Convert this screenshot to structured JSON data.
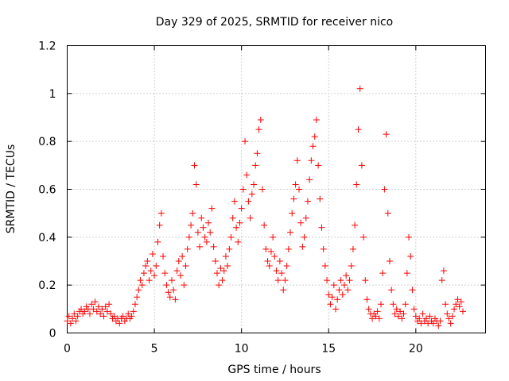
{
  "chart_data": {
    "type": "scatter",
    "title": "Day 329 of 2025, SRMTID for receiver nico",
    "xlabel": "GPS time / hours",
    "ylabel": "SRMTID / TECUs",
    "xlim": [
      0,
      24
    ],
    "ylim": [
      0,
      1.2
    ],
    "x_ticks": [
      0,
      5,
      10,
      15,
      20
    ],
    "x_tick_labels": [
      "0",
      "5",
      "10",
      "15",
      "20"
    ],
    "y_ticks": [
      0,
      0.2,
      0.4,
      0.6,
      0.8,
      1.0,
      1.2
    ],
    "y_tick_labels": [
      "0",
      "0.2",
      "0.4",
      "0.6",
      "0.8",
      "1",
      "1.2"
    ],
    "grid": true,
    "marker": "+",
    "color": "#ff0000",
    "series": [
      {
        "name": "SRMTID",
        "points": [
          [
            0.0,
            0.05
          ],
          [
            0.1,
            0.07
          ],
          [
            0.2,
            0.04
          ],
          [
            0.3,
            0.06
          ],
          [
            0.4,
            0.08
          ],
          [
            0.5,
            0.05
          ],
          [
            0.6,
            0.07
          ],
          [
            0.7,
            0.09
          ],
          [
            0.8,
            0.1
          ],
          [
            0.9,
            0.08
          ],
          [
            1.0,
            0.09
          ],
          [
            1.1,
            0.11
          ],
          [
            1.2,
            0.1
          ],
          [
            1.3,
            0.08
          ],
          [
            1.4,
            0.12
          ],
          [
            1.5,
            0.1
          ],
          [
            1.6,
            0.13
          ],
          [
            1.7,
            0.09
          ],
          [
            1.8,
            0.11
          ],
          [
            1.9,
            0.08
          ],
          [
            2.0,
            0.1
          ],
          [
            2.1,
            0.07
          ],
          [
            2.2,
            0.11
          ],
          [
            2.3,
            0.09
          ],
          [
            2.4,
            0.12
          ],
          [
            2.5,
            0.08
          ],
          [
            2.6,
            0.06
          ],
          [
            2.7,
            0.07
          ],
          [
            2.8,
            0.05
          ],
          [
            2.9,
            0.06
          ],
          [
            3.0,
            0.04
          ],
          [
            3.1,
            0.06
          ],
          [
            3.2,
            0.07
          ],
          [
            3.3,
            0.05
          ],
          [
            3.4,
            0.06
          ],
          [
            3.5,
            0.08
          ],
          [
            3.6,
            0.06
          ],
          [
            3.7,
            0.07
          ],
          [
            3.8,
            0.09
          ],
          [
            3.9,
            0.12
          ],
          [
            4.0,
            0.15
          ],
          [
            4.1,
            0.18
          ],
          [
            4.2,
            0.22
          ],
          [
            4.3,
            0.2
          ],
          [
            4.4,
            0.25
          ],
          [
            4.5,
            0.28
          ],
          [
            4.6,
            0.3
          ],
          [
            4.7,
            0.22
          ],
          [
            4.8,
            0.26
          ],
          [
            4.9,
            0.33
          ],
          [
            5.0,
            0.24
          ],
          [
            5.1,
            0.28
          ],
          [
            5.2,
            0.38
          ],
          [
            5.3,
            0.45
          ],
          [
            5.4,
            0.5
          ],
          [
            5.5,
            0.32
          ],
          [
            5.6,
            0.25
          ],
          [
            5.7,
            0.2
          ],
          [
            5.8,
            0.17
          ],
          [
            5.9,
            0.15
          ],
          [
            6.0,
            0.22
          ],
          [
            6.1,
            0.18
          ],
          [
            6.2,
            0.14
          ],
          [
            6.3,
            0.26
          ],
          [
            6.4,
            0.3
          ],
          [
            6.5,
            0.24
          ],
          [
            6.6,
            0.32
          ],
          [
            6.7,
            0.2
          ],
          [
            6.8,
            0.28
          ],
          [
            6.9,
            0.35
          ],
          [
            7.0,
            0.4
          ],
          [
            7.1,
            0.45
          ],
          [
            7.2,
            0.5
          ],
          [
            7.3,
            0.7
          ],
          [
            7.4,
            0.62
          ],
          [
            7.5,
            0.42
          ],
          [
            7.6,
            0.36
          ],
          [
            7.7,
            0.48
          ],
          [
            7.8,
            0.44
          ],
          [
            7.9,
            0.4
          ],
          [
            8.0,
            0.38
          ],
          [
            8.1,
            0.46
          ],
          [
            8.2,
            0.42
          ],
          [
            8.3,
            0.52
          ],
          [
            8.4,
            0.36
          ],
          [
            8.5,
            0.3
          ],
          [
            8.6,
            0.25
          ],
          [
            8.7,
            0.2
          ],
          [
            8.8,
            0.27
          ],
          [
            8.9,
            0.22
          ],
          [
            9.0,
            0.26
          ],
          [
            9.1,
            0.32
          ],
          [
            9.2,
            0.28
          ],
          [
            9.3,
            0.35
          ],
          [
            9.4,
            0.4
          ],
          [
            9.5,
            0.48
          ],
          [
            9.6,
            0.55
          ],
          [
            9.7,
            0.44
          ],
          [
            9.8,
            0.38
          ],
          [
            9.9,
            0.46
          ],
          [
            10.0,
            0.52
          ],
          [
            10.1,
            0.6
          ],
          [
            10.2,
            0.8
          ],
          [
            10.3,
            0.66
          ],
          [
            10.4,
            0.55
          ],
          [
            10.5,
            0.48
          ],
          [
            10.6,
            0.58
          ],
          [
            10.7,
            0.62
          ],
          [
            10.8,
            0.7
          ],
          [
            10.9,
            0.75
          ],
          [
            11.0,
            0.85
          ],
          [
            11.1,
            0.89
          ],
          [
            11.2,
            0.6
          ],
          [
            11.3,
            0.45
          ],
          [
            11.4,
            0.35
          ],
          [
            11.5,
            0.3
          ],
          [
            11.6,
            0.28
          ],
          [
            11.7,
            0.34
          ],
          [
            11.8,
            0.4
          ],
          [
            11.9,
            0.32
          ],
          [
            12.0,
            0.26
          ],
          [
            12.1,
            0.22
          ],
          [
            12.2,
            0.3
          ],
          [
            12.3,
            0.25
          ],
          [
            12.4,
            0.18
          ],
          [
            12.5,
            0.22
          ],
          [
            12.6,
            0.28
          ],
          [
            12.7,
            0.35
          ],
          [
            12.8,
            0.42
          ],
          [
            12.9,
            0.5
          ],
          [
            13.0,
            0.56
          ],
          [
            13.1,
            0.62
          ],
          [
            13.2,
            0.72
          ],
          [
            13.3,
            0.6
          ],
          [
            13.4,
            0.46
          ],
          [
            13.5,
            0.36
          ],
          [
            13.6,
            0.4
          ],
          [
            13.7,
            0.48
          ],
          [
            13.8,
            0.55
          ],
          [
            13.9,
            0.64
          ],
          [
            14.0,
            0.72
          ],
          [
            14.1,
            0.78
          ],
          [
            14.2,
            0.82
          ],
          [
            14.3,
            0.89
          ],
          [
            14.4,
            0.7
          ],
          [
            14.5,
            0.56
          ],
          [
            14.6,
            0.44
          ],
          [
            14.7,
            0.35
          ],
          [
            14.8,
            0.28
          ],
          [
            14.9,
            0.22
          ],
          [
            15.0,
            0.16
          ],
          [
            15.1,
            0.12
          ],
          [
            15.2,
            0.15
          ],
          [
            15.3,
            0.2
          ],
          [
            15.4,
            0.1
          ],
          [
            15.5,
            0.14
          ],
          [
            15.6,
            0.18
          ],
          [
            15.7,
            0.22
          ],
          [
            15.8,
            0.16
          ],
          [
            15.9,
            0.2
          ],
          [
            16.0,
            0.24
          ],
          [
            16.1,
            0.18
          ],
          [
            16.2,
            0.22
          ],
          [
            16.3,
            0.28
          ],
          [
            16.4,
            0.35
          ],
          [
            16.5,
            0.45
          ],
          [
            16.6,
            0.62
          ],
          [
            16.7,
            0.85
          ],
          [
            16.8,
            1.02
          ],
          [
            16.9,
            0.7
          ],
          [
            17.0,
            0.4
          ],
          [
            17.1,
            0.22
          ],
          [
            17.2,
            0.14
          ],
          [
            17.3,
            0.1
          ],
          [
            17.4,
            0.08
          ],
          [
            17.5,
            0.06
          ],
          [
            17.6,
            0.08
          ],
          [
            17.7,
            0.07
          ],
          [
            17.8,
            0.09
          ],
          [
            17.9,
            0.06
          ],
          [
            18.0,
            0.12
          ],
          [
            18.1,
            0.25
          ],
          [
            18.2,
            0.6
          ],
          [
            18.3,
            0.83
          ],
          [
            18.4,
            0.5
          ],
          [
            18.5,
            0.3
          ],
          [
            18.6,
            0.18
          ],
          [
            18.7,
            0.12
          ],
          [
            18.8,
            0.08
          ],
          [
            18.9,
            0.1
          ],
          [
            19.0,
            0.07
          ],
          [
            19.1,
            0.09
          ],
          [
            19.2,
            0.06
          ],
          [
            19.3,
            0.08
          ],
          [
            19.4,
            0.12
          ],
          [
            19.5,
            0.25
          ],
          [
            19.6,
            0.4
          ],
          [
            19.7,
            0.32
          ],
          [
            19.8,
            0.18
          ],
          [
            19.9,
            0.1
          ],
          [
            20.0,
            0.07
          ],
          [
            20.1,
            0.05
          ],
          [
            20.2,
            0.06
          ],
          [
            20.3,
            0.04
          ],
          [
            20.4,
            0.08
          ],
          [
            20.5,
            0.05
          ],
          [
            20.6,
            0.06
          ],
          [
            20.7,
            0.04
          ],
          [
            20.8,
            0.07
          ],
          [
            20.9,
            0.05
          ],
          [
            21.0,
            0.04
          ],
          [
            21.1,
            0.06
          ],
          [
            21.2,
            0.05
          ],
          [
            21.3,
            0.03
          ],
          [
            21.4,
            0.05
          ],
          [
            21.5,
            0.22
          ],
          [
            21.6,
            0.26
          ],
          [
            21.7,
            0.12
          ],
          [
            21.8,
            0.08
          ],
          [
            21.9,
            0.06
          ],
          [
            22.0,
            0.04
          ],
          [
            22.1,
            0.07
          ],
          [
            22.2,
            0.1
          ],
          [
            22.3,
            0.12
          ],
          [
            22.4,
            0.14
          ],
          [
            22.5,
            0.11
          ],
          [
            22.6,
            0.13
          ],
          [
            22.7,
            0.09
          ]
        ]
      }
    ]
  }
}
